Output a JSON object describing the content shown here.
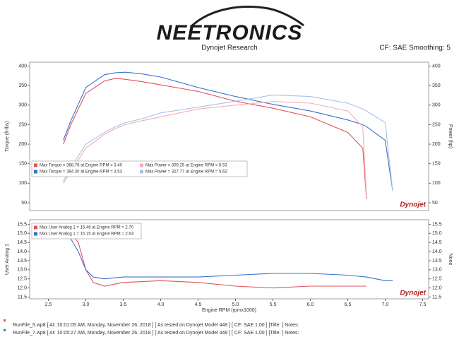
{
  "header": {
    "logo": "NEETRONICS",
    "subtitle": "Dynojet Research",
    "settings": "CF: SAE Smoothing: 5"
  },
  "chart_data": [
    {
      "type": "line",
      "y_label": "Torque (ft-lbs)",
      "y2_label": "Power (hp)",
      "watermark": "Dynojet",
      "x": [
        2.7,
        2.8,
        3.0,
        3.25,
        3.4,
        3.53,
        3.75,
        4.0,
        4.5,
        5.0,
        5.5,
        6.0,
        6.5,
        6.7,
        6.75,
        7.0,
        7.1
      ],
      "xlim": [
        2.25,
        7.58
      ],
      "ylim": [
        30,
        410
      ],
      "yticks": [
        50,
        100,
        150,
        200,
        250,
        300,
        350,
        400
      ],
      "y2lim": [
        30,
        410
      ],
      "y2ticks": [
        50,
        100,
        150,
        200,
        250,
        300,
        350,
        400
      ],
      "series": [
        {
          "name": "Max Torque = 368.78 at Engine RPM = 3.40",
          "color": "#e4505c",
          "values": [
            200,
            250,
            330,
            362,
            368.78,
            366,
            360,
            352,
            335,
            310,
            292,
            270,
            230,
            190,
            60,
            null,
            null
          ]
        },
        {
          "name": "Max Torque = 384.30 at Engine RPM = 3.53",
          "color": "#3b6fd0",
          "values": [
            210,
            260,
            345,
            378,
            383,
            384.3,
            380,
            372,
            345,
            322,
            302,
            285,
            262,
            250,
            245,
            210,
            80
          ]
        },
        {
          "name": "Max Power = 309.25 at Engine RPM = 5.53",
          "color": "#f2adb3",
          "axis": "y2",
          "values": [
            100,
            130,
            190,
            225,
            240,
            250,
            260,
            270,
            290,
            300,
            309.25,
            305,
            285,
            245,
            65,
            null,
            null
          ]
        },
        {
          "name": "Max Power = 327.77 at Engine RPM = 5.62",
          "color": "#a8c0ee",
          "axis": "y2",
          "values": [
            105,
            140,
            200,
            230,
            245,
            255,
            265,
            280,
            295,
            310,
            326,
            322,
            305,
            290,
            285,
            255,
            80
          ]
        }
      ]
    },
    {
      "type": "line",
      "y_label": "User Analog 1",
      "y2_label": "None",
      "x_label": "Engine RPM (rpmx1000)",
      "watermark": "Dynojet",
      "x": [
        2.7,
        2.9,
        3.0,
        3.1,
        3.25,
        3.5,
        4.0,
        4.5,
        5.0,
        5.5,
        6.0,
        6.5,
        6.75,
        7.0,
        7.1
      ],
      "xlim": [
        2.25,
        7.58
      ],
      "xticks": [
        2.5,
        {
          "value": 3,
          "label": "3.0"
        },
        3.5,
        {
          "value": 4,
          "label": "4.0"
        },
        4.5,
        {
          "value": 5,
          "label": "5.0"
        },
        5.5,
        {
          "value": 6,
          "label": "6.0"
        },
        6.5,
        {
          "value": 7,
          "label": "7.0"
        },
        7.5
      ],
      "ylim": [
        11.4,
        15.75
      ],
      "yticks": [
        11.5,
        {
          "value": 12,
          "label": "12.0"
        },
        12.5,
        {
          "value": 13,
          "label": "13.0"
        },
        13.5,
        {
          "value": 14,
          "label": "14.0"
        },
        14.5,
        {
          "value": 15,
          "label": "15.0"
        },
        15.5
      ],
      "y2lim": [
        11.4,
        15.75
      ],
      "y2ticks": [
        11.5,
        {
          "value": 12,
          "label": "12.0"
        },
        12.5,
        {
          "value": 13,
          "label": "13.0"
        },
        13.5,
        {
          "value": 14,
          "label": "14.0"
        },
        14.5,
        {
          "value": 15,
          "label": "15.0"
        },
        15.5
      ],
      "series": [
        {
          "name": "Max User Analog 1 = 15.46 at Engine RPM = 2.70",
          "color": "#e4505c",
          "values": [
            15.5,
            14.5,
            13.0,
            12.3,
            12.1,
            12.3,
            12.4,
            12.3,
            12.1,
            12.0,
            12.1,
            12.1,
            12.1,
            null,
            null
          ]
        },
        {
          "name": "Max User Analog 1 = 15.15 at Engine RPM = 2.63",
          "color": "#3b6fd0",
          "values": [
            15.4,
            14.0,
            13.0,
            12.6,
            12.5,
            12.6,
            12.6,
            12.6,
            12.7,
            12.8,
            12.8,
            12.7,
            12.6,
            12.4,
            12.4
          ]
        }
      ]
    }
  ],
  "footer": [
    "RunFile_5.wp8 [ At: 10:01:05 AM, Monday, November 26, 2018 ] [ As tested on Dynojet Model 448 ] [ CF: SAE 1.00 ] [Title: ]  Notes:",
    "RunFile_7.wp8 [ At: 10:05:27 AM, Monday, November 26, 2018 ] [ As tested on Dynojet Model 448 ] [ CF: SAE 1.00 ] [Title: ]  Notes:"
  ]
}
